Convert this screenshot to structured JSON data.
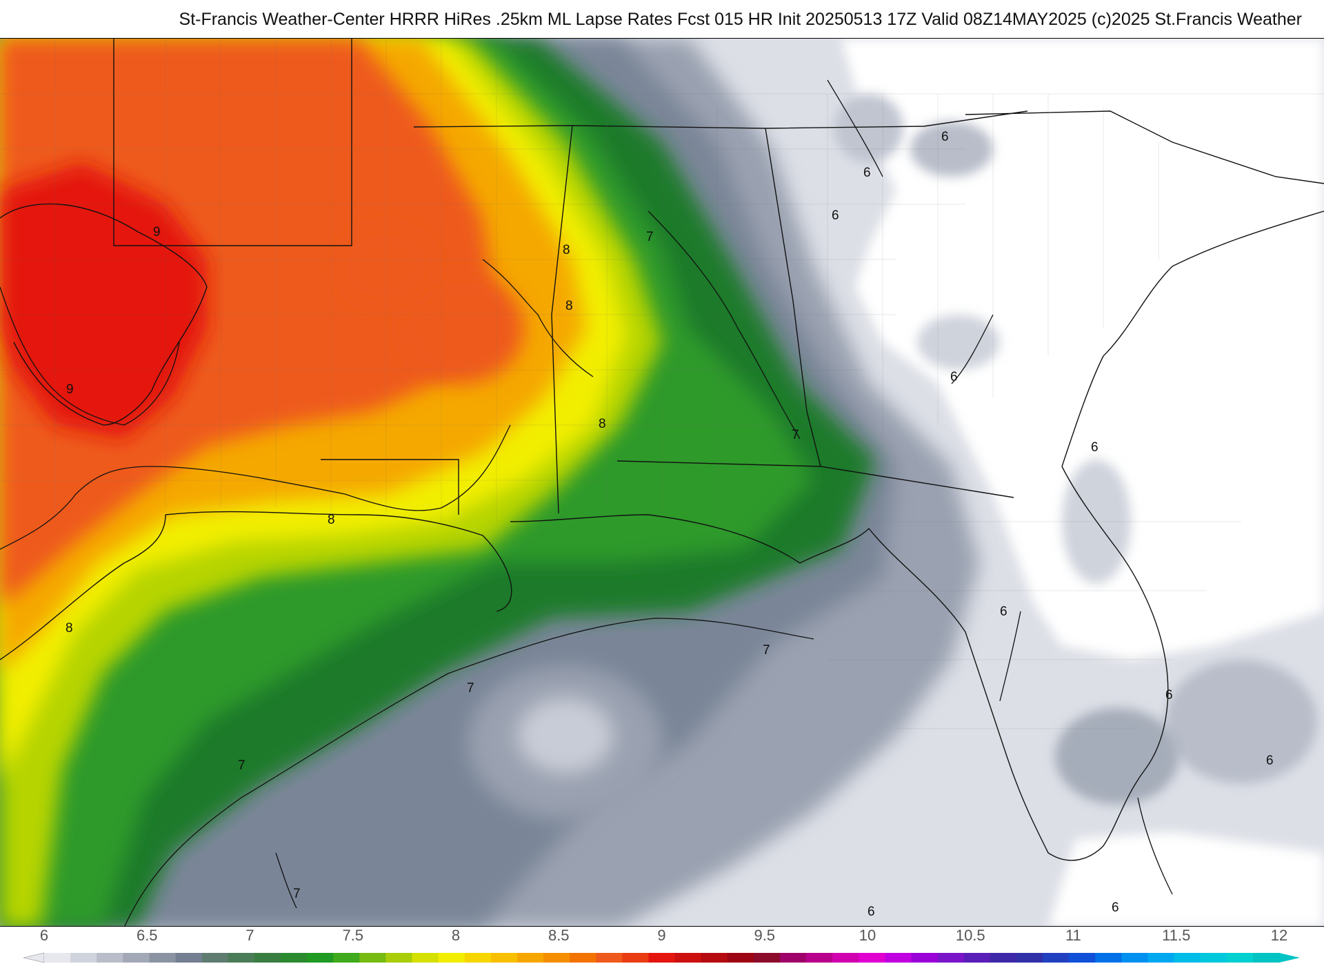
{
  "header": {
    "title": "St-Francis Weather-Center HRRR HiRes .25km ML Lapse Rates  Fcst 015 HR Init 20250513 17Z  Valid 08Z14MAY2025    (c)2025 St.Francis Weather"
  },
  "map": {
    "contour_labels": [
      "9",
      "9",
      "8",
      "8",
      "8",
      "8",
      "8",
      "7",
      "7",
      "7",
      "7",
      "7",
      "7",
      "6",
      "6",
      "6",
      "6",
      "6",
      "6",
      "6",
      "6",
      "6",
      "6"
    ],
    "palette": {
      "gray_light": "#dcdfe6",
      "gray_mid": "#9aa1b0",
      "gray_dark": "#6f7b8c",
      "green_dark": "#1e7a2c",
      "green": "#2f9a2a",
      "yellow_green": "#b6d400",
      "yellow": "#f2ee00",
      "orange": "#f5a800",
      "red_orange": "#ee5a1b",
      "red": "#e4150f"
    }
  },
  "colorbar": {
    "tick_labels": [
      "6",
      "6.5",
      "7",
      "7.5",
      "8",
      "8.5",
      "9",
      "9.5",
      "10",
      "10.5",
      "11",
      "11.5",
      "12"
    ],
    "colors": [
      "#e6e8ee",
      "#cfd3dc",
      "#b8bdc9",
      "#a2a8b6",
      "#8b93a3",
      "#748092",
      "#5f7c70",
      "#4a7c57",
      "#3a7d40",
      "#2b8a2f",
      "#1f9a22",
      "#3faa1b",
      "#77bb12",
      "#a9cd09",
      "#d3e000",
      "#f2ee00",
      "#f7d600",
      "#f8bf00",
      "#f7a600",
      "#f58f00",
      "#f27300",
      "#ee5a1b",
      "#e93c12",
      "#e4150f",
      "#cc0f0f",
      "#b40a10",
      "#9d0514",
      "#8c0a2a",
      "#a0006a",
      "#b8008c",
      "#d000b0",
      "#e000d0",
      "#c000e0",
      "#9a00d8",
      "#7a14c8",
      "#5a1eb8",
      "#3e28a8",
      "#3030a8",
      "#2040c0",
      "#1050d8",
      "#0070e8",
      "#0090f0",
      "#00a8f0",
      "#00bce8",
      "#00c8dc",
      "#00d0d0",
      "#00c4c4"
    ],
    "min_label": "6",
    "max_label": "12"
  }
}
